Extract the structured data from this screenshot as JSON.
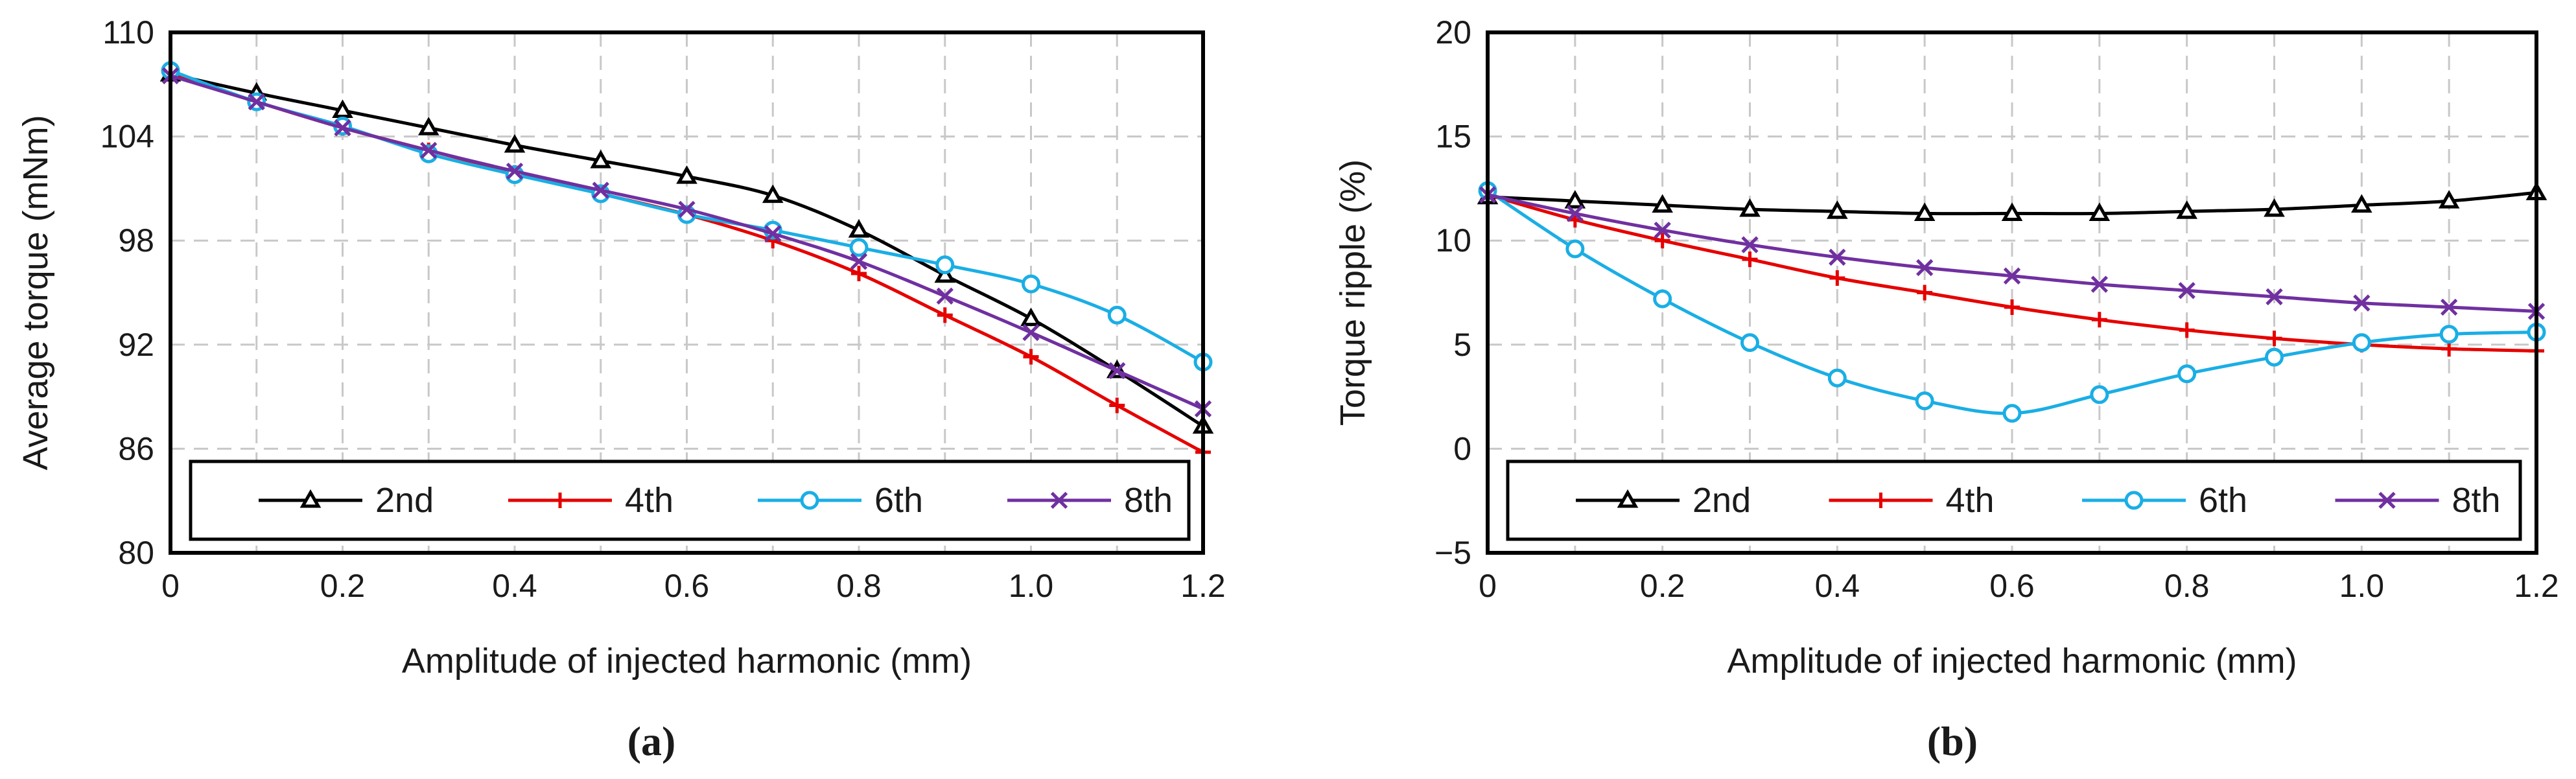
{
  "chart_data": [
    {
      "panel": "a",
      "type": "line",
      "caption": "(a)",
      "title": "",
      "xlabel": "Amplitude of injected harmonic (mm)",
      "ylabel": "Average torque (mNm)",
      "xlim": [
        0,
        1.2
      ],
      "ylim": [
        80,
        110
      ],
      "xticks": [
        "0",
        "0.2",
        "0.4",
        "0.6",
        "0.8",
        "1.0",
        "1.2"
      ],
      "yticks": [
        "80",
        "86",
        "92",
        "98",
        "104",
        "110"
      ],
      "grid": true,
      "legend": "bottom",
      "x": [
        0,
        0.1,
        0.2,
        0.3,
        0.4,
        0.5,
        0.6,
        0.7,
        0.8,
        0.9,
        1.0,
        1.1,
        1.2
      ],
      "series": [
        {
          "name": "2nd",
          "color": "#000000",
          "marker": "triangle",
          "values": [
            107.6,
            106.5,
            105.5,
            104.5,
            103.5,
            102.6,
            101.7,
            100.6,
            98.6,
            96.0,
            93.5,
            90.5,
            87.3
          ]
        },
        {
          "name": "4th",
          "color": "#e60000",
          "marker": "plus",
          "values": [
            107.6,
            106.0,
            104.5,
            103.2,
            101.9,
            100.7,
            99.5,
            98.0,
            96.1,
            93.7,
            91.3,
            88.5,
            85.8
          ]
        },
        {
          "name": "6th",
          "color": "#1aaee5",
          "marker": "circle",
          "values": [
            107.8,
            106.0,
            104.6,
            103.0,
            101.8,
            100.7,
            99.5,
            98.6,
            97.6,
            96.6,
            95.5,
            93.7,
            91.0
          ]
        },
        {
          "name": "8th",
          "color": "#7030a0",
          "marker": "x",
          "values": [
            107.5,
            106.0,
            104.5,
            103.2,
            102.0,
            100.9,
            99.8,
            98.4,
            96.8,
            94.8,
            92.7,
            90.5,
            88.3
          ]
        }
      ]
    },
    {
      "panel": "b",
      "type": "line",
      "caption": "(b)",
      "title": "",
      "xlabel": "Amplitude of injected harmonic (mm)",
      "ylabel": "Torque ripple (%)",
      "xlim": [
        0,
        1.2
      ],
      "ylim": [
        -5,
        20
      ],
      "xticks": [
        "0",
        "0.2",
        "0.4",
        "0.6",
        "0.8",
        "1.0",
        "1.2"
      ],
      "yticks": [
        "−5",
        "0",
        "5",
        "10",
        "15",
        "20"
      ],
      "grid": true,
      "legend": "bottom",
      "x": [
        0,
        0.1,
        0.2,
        0.3,
        0.4,
        0.5,
        0.6,
        0.7,
        0.8,
        0.9,
        1.0,
        1.1,
        1.2
      ],
      "series": [
        {
          "name": "2nd",
          "color": "#000000",
          "marker": "triangle",
          "values": [
            12.1,
            11.9,
            11.7,
            11.5,
            11.4,
            11.3,
            11.3,
            11.3,
            11.4,
            11.5,
            11.7,
            11.9,
            12.3
          ]
        },
        {
          "name": "4th",
          "color": "#e60000",
          "marker": "plus",
          "values": [
            12.2,
            11.0,
            10.0,
            9.1,
            8.2,
            7.5,
            6.8,
            6.2,
            5.7,
            5.3,
            5.0,
            4.8,
            4.7
          ]
        },
        {
          "name": "6th",
          "color": "#1aaee5",
          "marker": "circle",
          "values": [
            12.4,
            9.6,
            7.2,
            5.1,
            3.4,
            2.3,
            1.7,
            2.6,
            3.6,
            4.4,
            5.1,
            5.5,
            5.6
          ]
        },
        {
          "name": "8th",
          "color": "#7030a0",
          "marker": "x",
          "values": [
            12.2,
            11.3,
            10.5,
            9.8,
            9.2,
            8.7,
            8.3,
            7.9,
            7.6,
            7.3,
            7.0,
            6.8,
            6.6
          ]
        }
      ]
    }
  ]
}
